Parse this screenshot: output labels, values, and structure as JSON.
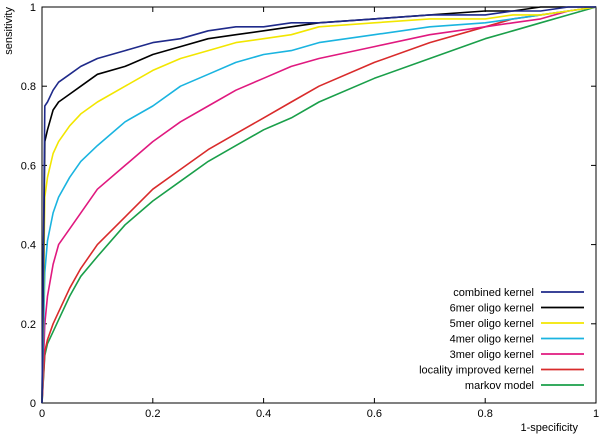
{
  "chart_data": {
    "type": "line",
    "title": "",
    "xlabel": "1-specificity",
    "ylabel": "sensitivity",
    "xlim": [
      0,
      1
    ],
    "ylim": [
      0,
      1
    ],
    "x_ticks": [
      "0",
      "0.2",
      "0.4",
      "0.6",
      "0.8",
      "1"
    ],
    "y_ticks": [
      "0",
      "0.2",
      "0.4",
      "0.6",
      "0.8",
      "1"
    ],
    "grid": false,
    "legend_position": "bottom-right",
    "x": [
      0,
      0.005,
      0.01,
      0.02,
      0.03,
      0.05,
      0.07,
      0.1,
      0.15,
      0.2,
      0.25,
      0.3,
      0.35,
      0.4,
      0.45,
      0.5,
      0.6,
      0.7,
      0.8,
      0.85,
      0.9,
      0.95,
      1.0
    ],
    "series": [
      {
        "name": "combined kernel",
        "color": "#1f2a8a",
        "values": [
          0,
          0.75,
          0.76,
          0.79,
          0.81,
          0.83,
          0.85,
          0.87,
          0.89,
          0.91,
          0.92,
          0.94,
          0.95,
          0.95,
          0.96,
          0.96,
          0.97,
          0.98,
          0.98,
          0.99,
          0.99,
          1.0,
          1.0
        ]
      },
      {
        "name": "6mer oligo kernel",
        "color": "#000000",
        "values": [
          0,
          0.66,
          0.69,
          0.74,
          0.76,
          0.78,
          0.8,
          0.83,
          0.85,
          0.88,
          0.9,
          0.92,
          0.93,
          0.94,
          0.95,
          0.96,
          0.97,
          0.98,
          0.99,
          0.99,
          1.0,
          1.0,
          1.0
        ]
      },
      {
        "name": "5mer oligo kernel",
        "color": "#f2e600",
        "values": [
          0,
          0.52,
          0.57,
          0.63,
          0.66,
          0.7,
          0.73,
          0.76,
          0.8,
          0.84,
          0.87,
          0.89,
          0.91,
          0.92,
          0.93,
          0.95,
          0.96,
          0.97,
          0.97,
          0.98,
          0.98,
          0.99,
          1.0
        ]
      },
      {
        "name": "4mer oligo kernel",
        "color": "#1ab4e0",
        "values": [
          0,
          0.33,
          0.41,
          0.48,
          0.52,
          0.57,
          0.61,
          0.65,
          0.71,
          0.75,
          0.8,
          0.83,
          0.86,
          0.88,
          0.89,
          0.91,
          0.93,
          0.95,
          0.96,
          0.97,
          0.98,
          0.99,
          1.0
        ]
      },
      {
        "name": "3mer oligo kernel",
        "color": "#e0197f",
        "values": [
          0,
          0.2,
          0.27,
          0.35,
          0.4,
          0.44,
          0.48,
          0.54,
          0.6,
          0.66,
          0.71,
          0.75,
          0.79,
          0.82,
          0.85,
          0.87,
          0.9,
          0.93,
          0.95,
          0.96,
          0.97,
          0.99,
          1.0
        ]
      },
      {
        "name": "locality improved kernel",
        "color": "#d92b2b",
        "values": [
          0,
          0.13,
          0.16,
          0.2,
          0.23,
          0.29,
          0.34,
          0.4,
          0.47,
          0.54,
          0.59,
          0.64,
          0.68,
          0.72,
          0.76,
          0.8,
          0.86,
          0.91,
          0.95,
          0.97,
          0.98,
          0.99,
          1.0
        ]
      },
      {
        "name": "markov model",
        "color": "#1a9f4a",
        "values": [
          0,
          0.12,
          0.15,
          0.18,
          0.21,
          0.27,
          0.32,
          0.37,
          0.45,
          0.51,
          0.56,
          0.61,
          0.65,
          0.69,
          0.72,
          0.76,
          0.82,
          0.87,
          0.92,
          0.94,
          0.96,
          0.98,
          1.0
        ]
      }
    ]
  }
}
